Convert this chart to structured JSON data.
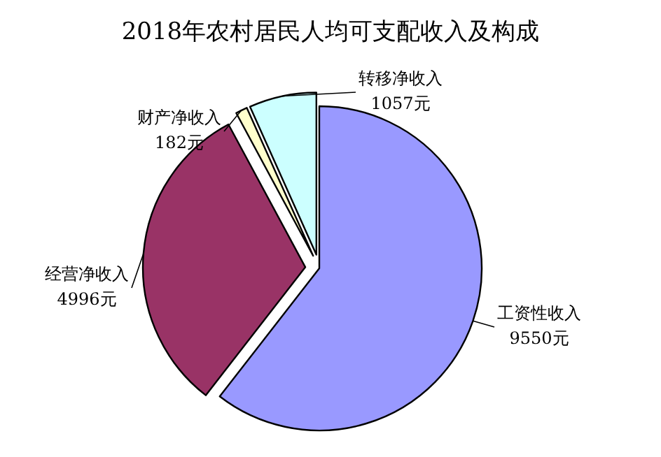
{
  "chart_data": {
    "type": "pie",
    "title": "2018年农村居民人均可支配收入及构成",
    "categories": [
      "工资性收入",
      "经营净收入",
      "财产净收入",
      "转移净收入"
    ],
    "values": [
      9550,
      4996,
      182,
      1057
    ],
    "value_labels": [
      "9550元",
      "4996元",
      "182元",
      "1057元"
    ],
    "colors": [
      "#9999ff",
      "#993366",
      "#ffffcc",
      "#ccffff"
    ]
  }
}
